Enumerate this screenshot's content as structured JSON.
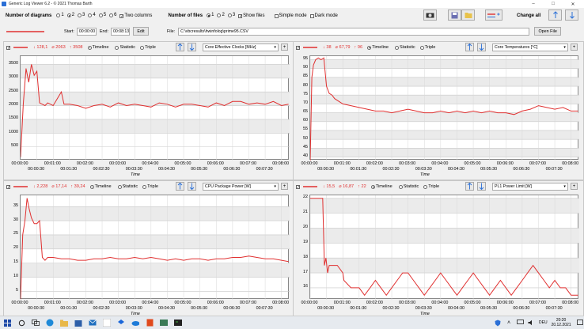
{
  "app": {
    "title": "Generic Log Viewer 6.2 - © 2021 Thomas Barth"
  },
  "toolbar": {
    "num_diagrams_label": "Number of diagrams",
    "diagram_options": [
      "1",
      "2",
      "3",
      "4",
      "5",
      "6"
    ],
    "diagram_selected": "2",
    "two_columns_label": "Two columns",
    "two_columns_checked": true,
    "num_files_label": "Number of files",
    "file_options": [
      "1",
      "2",
      "3"
    ],
    "file_selected": "1",
    "show_files_label": "Show files",
    "show_files_checked": true,
    "simple_mode_label": "Simple mode",
    "dark_mode_label": "Dark mode",
    "change_all_label": "Change all"
  },
  "filebar": {
    "start_label": "Start:",
    "start_value": "00:00:00",
    "end_label": "End:",
    "end_value": "00:08:13",
    "edit_label": "Edit",
    "file_label": "File:",
    "file_value": "C:\\vbcresults\\hwinfolog\\prime95.CSV",
    "open_label": "Open File"
  },
  "line_color": "#e03030",
  "panels": [
    {
      "min": "128,1",
      "avg": "2063",
      "max": "3508",
      "sensor": "Core Effective Clocks [MHz]",
      "timeline": "Timeline",
      "statistic": "Statistic",
      "triple": "Triple",
      "yticks": [
        "3500",
        "3000",
        "2500",
        "2000",
        "1500",
        "1000",
        "500"
      ],
      "xticks": [
        "00:00:00",
        "00:00:30",
        "00:01:00",
        "00:01:30",
        "00:02:00",
        "00:02:30",
        "00:03:00",
        "00:03:30",
        "00:04:00",
        "00:04:30",
        "00:05:00",
        "00:05:30",
        "00:06:00",
        "00:06:30",
        "00:07:00",
        "00:07:30",
        "00:08:00"
      ],
      "xlabel": "Time",
      "chart_data": {
        "type": "line",
        "ylim": [
          0,
          3800
        ],
        "x_seconds": [
          0,
          5,
          10,
          15,
          20,
          25,
          30,
          35,
          40,
          45,
          50,
          55,
          60,
          75,
          80,
          90,
          105,
          120,
          135,
          150,
          165,
          180,
          195,
          210,
          225,
          240,
          255,
          270,
          285,
          300,
          315,
          330,
          345,
          360,
          375,
          390,
          405,
          420,
          435,
          450,
          465,
          480,
          493
        ],
        "values": [
          128,
          2050,
          3350,
          2850,
          3500,
          3100,
          3250,
          2100,
          2050,
          2000,
          2100,
          2050,
          2000,
          2500,
          2050,
          2050,
          2000,
          1900,
          2000,
          2050,
          1950,
          2100,
          2000,
          2050,
          2000,
          1950,
          2100,
          2050,
          1950,
          2050,
          2050,
          2000,
          1950,
          2100,
          2000,
          2150,
          2150,
          2050,
          2100,
          2050,
          2150,
          2000,
          2050
        ]
      }
    },
    {
      "min": "38",
      "avg": "67,79",
      "max": "96",
      "sensor": "Core Temperatures [°C]",
      "timeline": "Timeline",
      "statistic": "Statistic",
      "triple": "Triple",
      "yticks": [
        "95",
        "90",
        "85",
        "80",
        "75",
        "70",
        "65",
        "60",
        "55",
        "50",
        "45",
        "40"
      ],
      "xticks": [
        "00:00:00",
        "00:00:30",
        "00:01:00",
        "00:01:30",
        "00:02:00",
        "00:02:30",
        "00:03:00",
        "00:03:30",
        "00:04:00",
        "00:04:30",
        "00:05:00",
        "00:05:30",
        "00:06:00",
        "00:06:30",
        "00:07:00",
        "00:07:30",
        "00:08:00"
      ],
      "xlabel": "Time",
      "chart_data": {
        "type": "line",
        "ylim": [
          38,
          97
        ],
        "x_seconds": [
          0,
          3,
          6,
          10,
          15,
          20,
          25,
          30,
          35,
          40,
          45,
          50,
          60,
          75,
          90,
          105,
          120,
          135,
          150,
          165,
          180,
          195,
          210,
          225,
          240,
          255,
          270,
          285,
          300,
          315,
          330,
          345,
          360,
          375,
          390,
          405,
          420,
          435,
          450,
          465,
          480,
          493
        ],
        "values": [
          38,
          85,
          92,
          95,
          96,
          95,
          96,
          80,
          76,
          75,
          73,
          72,
          70,
          69,
          68,
          67,
          66,
          66,
          65,
          66,
          67,
          66,
          65,
          65,
          66,
          65,
          66,
          65,
          66,
          65,
          66,
          65,
          65,
          64,
          66,
          67,
          69,
          68,
          67,
          68,
          66,
          66
        ]
      }
    },
    {
      "min": "2,228",
      "avg": "17,14",
      "max": "39,24",
      "sensor": "CPU Package Power [W]",
      "timeline": "Timeline",
      "statistic": "Statistic",
      "triple": "Triple",
      "yticks": [
        "35",
        "30",
        "25",
        "20",
        "15",
        "10",
        "5"
      ],
      "xticks": [
        "00:00:00",
        "00:00:30",
        "00:01:00",
        "00:01:30",
        "00:02:00",
        "00:02:30",
        "00:03:00",
        "00:03:30",
        "00:04:00",
        "00:04:30",
        "00:05:00",
        "00:05:30",
        "00:06:00",
        "00:06:30",
        "00:07:00",
        "00:07:30",
        "00:08:00"
      ],
      "xlabel": "Time",
      "chart_data": {
        "type": "line",
        "ylim": [
          2,
          39
        ],
        "x_seconds": [
          0,
          4,
          8,
          12,
          16,
          20,
          25,
          30,
          35,
          40,
          45,
          50,
          55,
          60,
          75,
          90,
          105,
          120,
          135,
          150,
          165,
          180,
          195,
          210,
          225,
          240,
          255,
          270,
          285,
          300,
          315,
          330,
          345,
          360,
          375,
          390,
          405,
          420,
          435,
          450,
          465,
          480,
          493
        ],
        "values": [
          2.2,
          25,
          30,
          38,
          34,
          31,
          29,
          29,
          30,
          17,
          16,
          17,
          17,
          17,
          16.5,
          16.5,
          16,
          16,
          16.5,
          16.5,
          17,
          16.5,
          16.5,
          17,
          16.5,
          17,
          16.5,
          16,
          16.5,
          16,
          16.5,
          16.5,
          16,
          16.5,
          16.5,
          17,
          17,
          17.5,
          17,
          16.5,
          16.5,
          16,
          15.5
        ]
      }
    },
    {
      "min": "15,5",
      "avg": "16,87",
      "max": "22",
      "sensor": "PL1 Power Limit [W]",
      "timeline": "Timeline",
      "statistic": "Statistic",
      "triple": "Triple",
      "yticks": [
        "22",
        "21",
        "20",
        "19",
        "18",
        "17",
        "16"
      ],
      "xticks": [
        "00:00:00",
        "00:00:30",
        "00:01:00",
        "00:01:30",
        "00:02:00",
        "00:02:30",
        "00:03:00",
        "00:03:30",
        "00:04:00",
        "00:04:30",
        "00:05:00",
        "00:05:30",
        "00:06:00",
        "00:06:30",
        "00:07:00",
        "00:07:30",
        "00:08:00"
      ],
      "xlabel": "Time",
      "chart_data": {
        "type": "line",
        "ylim": [
          15.2,
          22.2
        ],
        "x_seconds": [
          0,
          23,
          26,
          29,
          32,
          35,
          38,
          40,
          50,
          60,
          62,
          75,
          90,
          100,
          110,
          120,
          130,
          140,
          150,
          160,
          170,
          180,
          190,
          200,
          210,
          220,
          230,
          240,
          250,
          260,
          270,
          280,
          290,
          300,
          310,
          320,
          330,
          340,
          350,
          360,
          370,
          380,
          390,
          400,
          410,
          420,
          430,
          440,
          450,
          460,
          470,
          480,
          493
        ],
        "values": [
          22,
          22,
          17.5,
          18,
          17,
          17.5,
          17.5,
          17.5,
          17.5,
          17,
          16.5,
          16,
          16,
          15.5,
          16,
          16.5,
          16,
          15.5,
          16,
          16.5,
          17,
          17,
          16.5,
          16,
          15.5,
          16,
          16.5,
          17,
          16.5,
          16,
          15.5,
          16,
          16.5,
          17,
          16.5,
          16,
          15.5,
          16,
          16.5,
          16,
          15.5,
          16,
          16.5,
          17,
          17.5,
          17,
          16.5,
          16,
          16.5,
          16,
          16,
          15.5,
          15.5
        ]
      }
    }
  ],
  "taskbar": {
    "lang": "DEU",
    "time": "20:20",
    "date": "20.12.2021"
  }
}
